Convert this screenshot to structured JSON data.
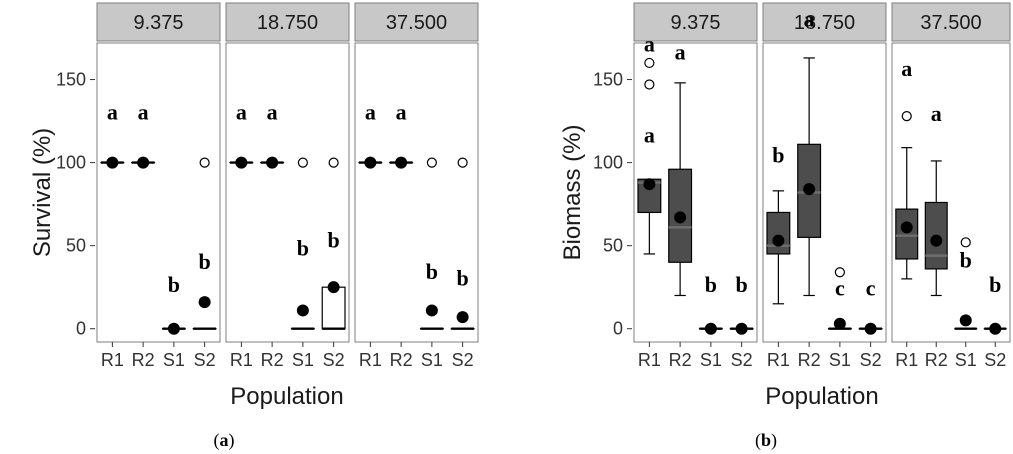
{
  "chart_data": [
    {
      "type": "boxplot",
      "caption": {
        "open": "(",
        "letter": "a",
        "close": ")"
      },
      "ylabel": "Survival (%)",
      "xlabel": "Population",
      "yticks": [
        0,
        50,
        100,
        150
      ],
      "ylim": [
        -8,
        172
      ],
      "categories": [
        "R1",
        "R2",
        "S1",
        "S2"
      ],
      "panels": [
        {
          "label": "9.375",
          "groups": [
            {
              "cat": "R1",
              "median": 100,
              "q1": 100,
              "q3": 100,
              "wlo": 100,
              "whi": 100,
              "mean": 100,
              "outliers": [],
              "letter": "a",
              "letter_y": 126
            },
            {
              "cat": "R2",
              "median": 100,
              "q1": 100,
              "q3": 100,
              "wlo": 100,
              "whi": 100,
              "mean": 100,
              "outliers": [],
              "letter": "a",
              "letter_y": 126
            },
            {
              "cat": "S1",
              "median": 0,
              "q1": 0,
              "q3": 0,
              "wlo": 0,
              "whi": 0,
              "mean": 0,
              "outliers": [],
              "letter": "b",
              "letter_y": 22
            },
            {
              "cat": "S2",
              "median": 0,
              "q1": 0,
              "q3": 0,
              "wlo": 0,
              "whi": 0,
              "mean": 16,
              "outliers": [
                100
              ],
              "letter": "b",
              "letter_y": 36
            }
          ]
        },
        {
          "label": "18.750",
          "groups": [
            {
              "cat": "R1",
              "median": 100,
              "q1": 100,
              "q3": 100,
              "wlo": 100,
              "whi": 100,
              "mean": 100,
              "outliers": [],
              "letter": "a",
              "letter_y": 126
            },
            {
              "cat": "R2",
              "median": 100,
              "q1": 100,
              "q3": 100,
              "wlo": 100,
              "whi": 100,
              "mean": 100,
              "outliers": [],
              "letter": "a",
              "letter_y": 126
            },
            {
              "cat": "S1",
              "median": 0,
              "q1": 0,
              "q3": 0,
              "wlo": 0,
              "whi": 0,
              "mean": 11,
              "outliers": [
                100
              ],
              "letter": "b",
              "letter_y": 44
            },
            {
              "cat": "S2",
              "median": 0,
              "q1": 0,
              "q3": 25,
              "wlo": 0,
              "whi": 25,
              "mean": 25,
              "outliers": [
                100
              ],
              "letter": "b",
              "letter_y": 49
            }
          ]
        },
        {
          "label": "37.500",
          "groups": [
            {
              "cat": "R1",
              "median": 100,
              "q1": 100,
              "q3": 100,
              "wlo": 100,
              "whi": 100,
              "mean": 100,
              "outliers": [],
              "letter": "a",
              "letter_y": 126
            },
            {
              "cat": "R2",
              "median": 100,
              "q1": 100,
              "q3": 100,
              "wlo": 100,
              "whi": 100,
              "mean": 100,
              "outliers": [],
              "letter": "a",
              "letter_y": 126
            },
            {
              "cat": "S1",
              "median": 0,
              "q1": 0,
              "q3": 0,
              "wlo": 0,
              "whi": 0,
              "mean": 11,
              "outliers": [
                100
              ],
              "letter": "b",
              "letter_y": 30
            },
            {
              "cat": "S2",
              "median": 0,
              "q1": 0,
              "q3": 0,
              "wlo": 0,
              "whi": 0,
              "mean": 7,
              "outliers": [
                100
              ],
              "letter": "b",
              "letter_y": 26
            }
          ]
        }
      ]
    },
    {
      "type": "boxplot",
      "caption": {
        "open": "(",
        "letter": "b",
        "close": ")"
      },
      "ylabel": "Biomass (%)",
      "xlabel": "Population",
      "yticks": [
        0,
        50,
        100,
        150
      ],
      "ylim": [
        -8,
        172
      ],
      "categories": [
        "R1",
        "R2",
        "S1",
        "S2"
      ],
      "panels": [
        {
          "label": "9.375",
          "groups": [
            {
              "cat": "R1",
              "median": 88,
              "q1": 70,
              "q3": 90,
              "wlo": 45,
              "whi": 90,
              "mean": 87,
              "outliers": [
                147,
                160
              ],
              "letter": "a",
              "letter_y": 112,
              "letter2": "a",
              "letter2_y": 167
            },
            {
              "cat": "R2",
              "median": 61,
              "q1": 40,
              "q3": 96,
              "wlo": 20,
              "whi": 148,
              "mean": 67,
              "outliers": [],
              "letter": "a",
              "letter_y": 162
            },
            {
              "cat": "S1",
              "median": 0,
              "q1": 0,
              "q3": 0,
              "wlo": 0,
              "whi": 0,
              "mean": 0,
              "outliers": [],
              "letter": "b",
              "letter_y": 22
            },
            {
              "cat": "S2",
              "median": 0,
              "q1": 0,
              "q3": 0,
              "wlo": 0,
              "whi": 0,
              "mean": 0,
              "outliers": [],
              "letter": "b",
              "letter_y": 22
            }
          ]
        },
        {
          "label": "18.750",
          "groups": [
            {
              "cat": "R1",
              "median": 50,
              "q1": 45,
              "q3": 70,
              "wlo": 15,
              "whi": 83,
              "mean": 53,
              "outliers": [],
              "letter": "b",
              "letter_y": 100
            },
            {
              "cat": "R2",
              "median": 82,
              "q1": 55,
              "q3": 111,
              "wlo": 20,
              "whi": 163,
              "mean": 84,
              "outliers": [],
              "letter": "a",
              "letter_y": 182
            },
            {
              "cat": "S1",
              "median": 0,
              "q1": 0,
              "q3": 0,
              "wlo": 0,
              "whi": 0,
              "mean": 3,
              "outliers": [
                34
              ],
              "letter": "c",
              "letter_y": 20
            },
            {
              "cat": "S2",
              "median": 0,
              "q1": 0,
              "q3": 0,
              "wlo": 0,
              "whi": 0,
              "mean": 0,
              "outliers": [],
              "letter": "c",
              "letter_y": 20
            }
          ]
        },
        {
          "label": "37.500",
          "groups": [
            {
              "cat": "R1",
              "median": 56,
              "q1": 42,
              "q3": 72,
              "wlo": 30,
              "whi": 109,
              "mean": 61,
              "outliers": [
                128
              ],
              "letter": "a",
              "letter_y": 152
            },
            {
              "cat": "R2",
              "median": 44,
              "q1": 36,
              "q3": 76,
              "wlo": 20,
              "whi": 101,
              "mean": 53,
              "outliers": [],
              "letter": "a",
              "letter_y": 125
            },
            {
              "cat": "S1",
              "median": 0,
              "q1": 0,
              "q3": 0,
              "wlo": 0,
              "whi": 0,
              "mean": 5,
              "outliers": [
                52
              ],
              "letter": "b",
              "letter_y": 37
            },
            {
              "cat": "S2",
              "median": 0,
              "q1": 0,
              "q3": 0,
              "wlo": 0,
              "whi": 0,
              "mean": 0,
              "outliers": [],
              "letter": "b",
              "letter_y": 22
            }
          ]
        }
      ]
    }
  ],
  "colors": {
    "strip_fill": "#c8c8c8",
    "panel_border": "#7f7f7f",
    "box_fill_survival": "#ffffff",
    "box_fill_biomass": "#4d4d4d",
    "mean_point": "#000000",
    "text": "#1a1a1a"
  }
}
